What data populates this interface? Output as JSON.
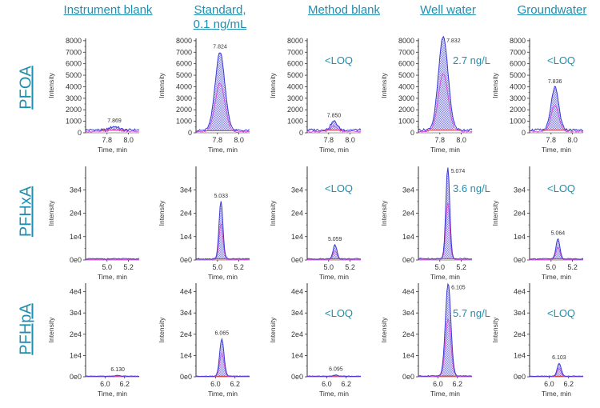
{
  "columns": [
    "Instrument blank",
    "Standard,\n0.1 ng/mL",
    "Method blank",
    "Well water",
    "Groundwater"
  ],
  "rows": [
    "PFOA",
    "PFHxA",
    "PFHpA"
  ],
  "colors": {
    "accent": "#1f8fb0",
    "trace_blue": "#3a3ad6",
    "trace_pink": "#d64ad6",
    "baseline_red": "#e03030",
    "axis": "#333333",
    "fill_hatch": "#6a6ae0"
  },
  "chart_data": [
    {
      "type": "line",
      "analyte": "PFOA",
      "xlabel": "Time, min",
      "ylabel": "Intensity",
      "xlim": [
        7.6,
        8.1
      ],
      "xticks": [
        "7.8",
        "8.0"
      ],
      "xtick_values": [
        7.8,
        8.0
      ],
      "ylim": [
        0,
        8200
      ],
      "yticks": [
        "0",
        "1000",
        "2000",
        "3000",
        "4000",
        "5000",
        "6000",
        "7000",
        "8000"
      ],
      "ytick_values": [
        0,
        1000,
        2000,
        3000,
        4000,
        5000,
        6000,
        7000,
        8000
      ],
      "panels": [
        {
          "sample": "Instrument blank",
          "peak_rt": 7.869,
          "peak_label": "7.869",
          "peak_height": 300,
          "peak_width": 0.04,
          "noise": 250,
          "annotation": ""
        },
        {
          "sample": "Standard, 0.1 ng/mL",
          "peak_rt": 7.824,
          "peak_label": "7.824",
          "peak_height": 6800,
          "peak_width": 0.045,
          "noise": 200,
          "annotation": ""
        },
        {
          "sample": "Method blank",
          "peak_rt": 7.85,
          "peak_label": "7.850",
          "peak_height": 750,
          "peak_width": 0.03,
          "noise": 250,
          "annotation": "<LOQ"
        },
        {
          "sample": "Well water",
          "peak_rt": 7.832,
          "peak_label": "7.832",
          "peak_height": 8100,
          "peak_width": 0.045,
          "noise": 250,
          "annotation": "2.7 ng/L"
        },
        {
          "sample": "Groundwater",
          "peak_rt": 7.836,
          "peak_label": "7.836",
          "peak_height": 3700,
          "peak_width": 0.035,
          "noise": 250,
          "annotation": "<LOQ"
        }
      ]
    },
    {
      "type": "line",
      "analyte": "PFHxA",
      "xlabel": "Time, min",
      "ylabel": "Intensity",
      "xlim": [
        4.8,
        5.3
      ],
      "xticks": [
        "5.0",
        "5.2"
      ],
      "xtick_values": [
        5.0,
        5.2
      ],
      "ylim": [
        0,
        40000
      ],
      "yticks": [
        "0e0",
        "1e4",
        "2e4",
        "3e4"
      ],
      "ytick_values": [
        0,
        10000,
        20000,
        30000
      ],
      "panels": [
        {
          "sample": "Instrument blank",
          "peak_rt": null,
          "peak_label": "",
          "peak_height": 0,
          "peak_width": 0.02,
          "noise": 500,
          "annotation": ""
        },
        {
          "sample": "Standard, 0.1 ng/mL",
          "peak_rt": 5.033,
          "peak_label": "5.033",
          "peak_height": 24500,
          "peak_width": 0.018,
          "noise": 500,
          "annotation": ""
        },
        {
          "sample": "Method blank",
          "peak_rt": 5.059,
          "peak_label": "5.059",
          "peak_height": 6000,
          "peak_width": 0.018,
          "noise": 500,
          "annotation": "<LOQ"
        },
        {
          "sample": "Well water",
          "peak_rt": 5.074,
          "peak_label": "5.074",
          "peak_height": 39000,
          "peak_width": 0.018,
          "noise": 600,
          "annotation": "3.6 ng/L"
        },
        {
          "sample": "Groundwater",
          "peak_rt": 5.064,
          "peak_label": "5.064",
          "peak_height": 8500,
          "peak_width": 0.018,
          "noise": 500,
          "annotation": "<LOQ"
        }
      ]
    },
    {
      "type": "line",
      "analyte": "PFHpA",
      "xlabel": "Time, min",
      "ylabel": "Intensity",
      "xlim": [
        5.8,
        6.35
      ],
      "xticks": [
        "6.0",
        "6.2"
      ],
      "xtick_values": [
        6.0,
        6.2
      ],
      "ylim": [
        0,
        44000
      ],
      "yticks": [
        "0e0",
        "1e4",
        "2e4",
        "3e4",
        "4e4"
      ],
      "ytick_values": [
        0,
        10000,
        20000,
        30000,
        40000
      ],
      "panels": [
        {
          "sample": "Instrument blank",
          "peak_rt": 6.13,
          "peak_label": "6.130",
          "peak_height": 400,
          "peak_width": 0.02,
          "noise": 300,
          "annotation": ""
        },
        {
          "sample": "Standard, 0.1 ng/mL",
          "peak_rt": 6.065,
          "peak_label": "6.065",
          "peak_height": 17500,
          "peak_width": 0.022,
          "noise": 300,
          "annotation": ""
        },
        {
          "sample": "Method blank",
          "peak_rt": 6.095,
          "peak_label": "6.095",
          "peak_height": 600,
          "peak_width": 0.02,
          "noise": 300,
          "annotation": "<LOQ"
        },
        {
          "sample": "Well water",
          "peak_rt": 6.105,
          "peak_label": "6.105",
          "peak_height": 43500,
          "peak_width": 0.028,
          "noise": 400,
          "annotation": "5.7 ng/L"
        },
        {
          "sample": "Groundwater",
          "peak_rt": 6.103,
          "peak_label": "6.103",
          "peak_height": 6000,
          "peak_width": 0.02,
          "noise": 300,
          "annotation": "<LOQ"
        }
      ]
    }
  ]
}
